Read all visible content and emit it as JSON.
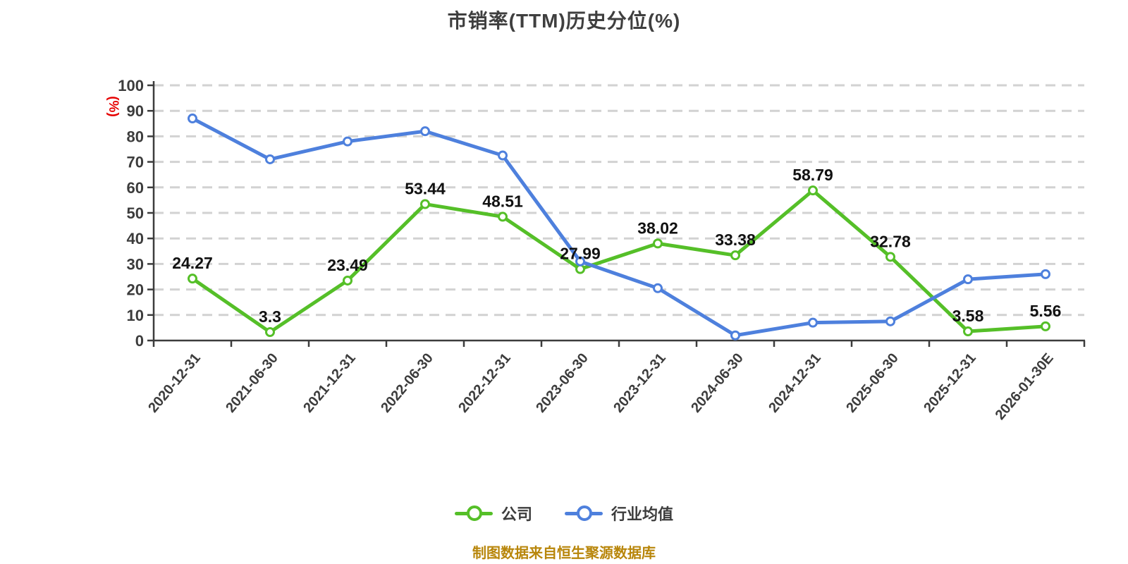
{
  "title": "市销率(TTM)历史分位(%)",
  "y_axis_unit_label": "(%)",
  "footer_note": "制图数据来自恒生聚源数据库",
  "legend": [
    {
      "label": "公司"
    },
    {
      "label": "行业均值"
    }
  ],
  "colors": {
    "company_green": "#55bf28",
    "industry_blue": "#4e80dd",
    "grid_line": "#d2d2d2",
    "axis_and_text": "#3c3c3c",
    "data_label": "#111111",
    "unit_label_red": "#e60000",
    "footer_gold": "#b8860b",
    "background": "#ffffff",
    "marker_fill": "#ffffff"
  },
  "chart_data": {
    "type": "line",
    "title": "市销率(TTM)历史分位(%)",
    "ylabel": "(%)",
    "ylim": [
      0,
      100
    ],
    "y_ticks": [
      0,
      10,
      20,
      30,
      40,
      50,
      60,
      70,
      80,
      90,
      100
    ],
    "grid": "horizontal dashed",
    "legend_position": "bottom",
    "categories": [
      "2020-12-31",
      "2021-06-30",
      "2021-12-31",
      "2022-06-30",
      "2022-12-31",
      "2023-06-30",
      "2023-12-31",
      "2024-06-30",
      "2024-12-31",
      "2025-06-30",
      "2025-12-31",
      "2026-01-30E"
    ],
    "series": [
      {
        "name": "公司",
        "color": "#55bf28",
        "show_labels": true,
        "values": [
          24.27,
          3.3,
          23.49,
          53.44,
          48.51,
          27.99,
          38.02,
          33.38,
          58.79,
          32.78,
          3.58,
          5.56
        ]
      },
      {
        "name": "行业均值",
        "color": "#4e80dd",
        "show_labels": false,
        "values": [
          87,
          71,
          78,
          82,
          72.5,
          31,
          20.5,
          2,
          7,
          7.5,
          24,
          26
        ]
      }
    ]
  }
}
